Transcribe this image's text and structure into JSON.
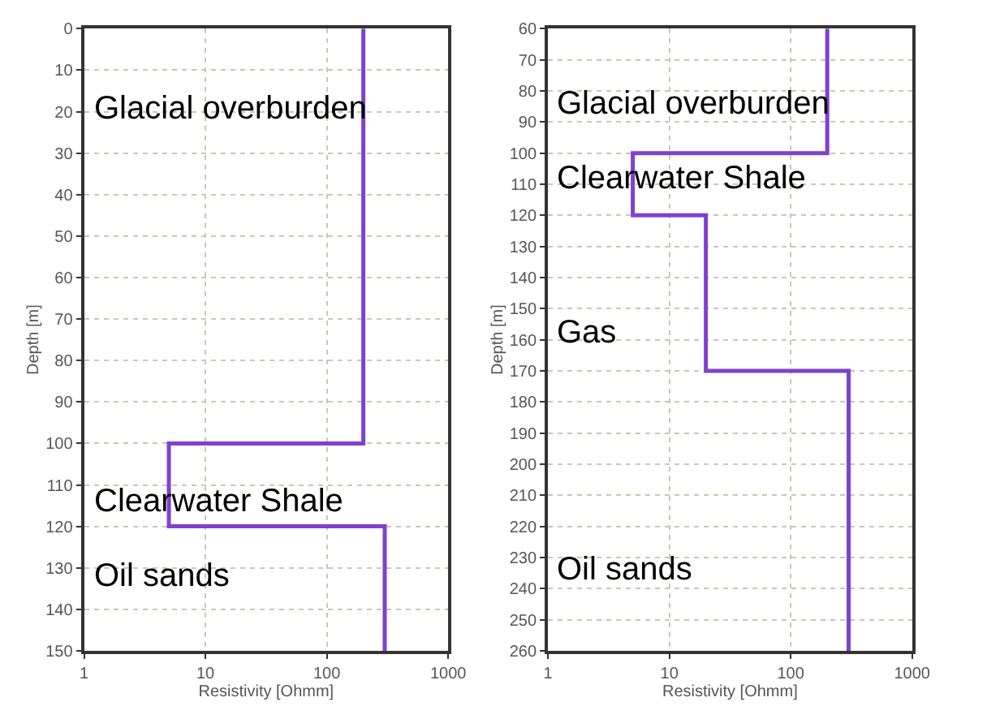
{
  "chart_data": [
    {
      "type": "line",
      "xlabel": "Resistivity [Ohmm]",
      "ylabel": "Depth [m]",
      "log": "x",
      "grid": true,
      "marker": "none",
      "line_style": "solid",
      "xlim": [
        1,
        1000
      ],
      "xticks": [
        1,
        10,
        100,
        1000
      ],
      "ylim": [
        150,
        0
      ],
      "yticks": [
        0,
        10,
        20,
        30,
        40,
        50,
        60,
        70,
        80,
        90,
        100,
        110,
        120,
        130,
        140,
        150
      ],
      "series": [
        {
          "color": "#8040d0",
          "x": [
            200,
            200,
            5,
            5,
            300,
            300
          ],
          "values": [
            0,
            100,
            100,
            120,
            120,
            150
          ]
        }
      ],
      "annotations": [
        "Glacial overburden",
        "Clearwater Shale",
        "Oil sands"
      ]
    },
    {
      "type": "line",
      "xlabel": "Resistivity [Ohmm]",
      "ylabel": "Depth [m]",
      "log": "x",
      "grid": true,
      "marker": "none",
      "line_style": "solid",
      "xlim": [
        1,
        1000
      ],
      "xticks": [
        1,
        10,
        100,
        1000
      ],
      "ylim": [
        260,
        60
      ],
      "yticks": [
        60,
        70,
        80,
        90,
        100,
        110,
        120,
        130,
        140,
        150,
        160,
        170,
        180,
        190,
        200,
        210,
        220,
        230,
        240,
        250,
        260
      ],
      "series": [
        {
          "color": "#8040d0",
          "x": [
            200,
            200,
            5,
            5,
            20,
            20,
            300,
            300
          ],
          "values": [
            60,
            100,
            100,
            120,
            120,
            170,
            170,
            260
          ]
        }
      ],
      "annotations": [
        "Glacial overburden",
        "Clearwater Shale",
        "Gas",
        "Oil sands"
      ]
    }
  ]
}
